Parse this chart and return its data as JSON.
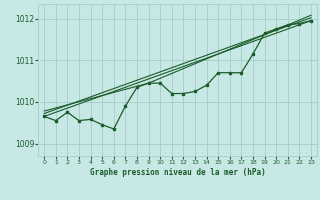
{
  "background_color": "#c8e8e5",
  "grid_color": "#a8d0cc",
  "line_color": "#1a5c2a",
  "xlabel": "Graphe pression niveau de la mer (hPa)",
  "xlim": [
    -0.5,
    23.5
  ],
  "ylim": [
    1008.7,
    1012.35
  ],
  "yticks": [
    1009,
    1010,
    1011,
    1012
  ],
  "xticks": [
    0,
    1,
    2,
    3,
    4,
    5,
    6,
    7,
    8,
    9,
    10,
    11,
    12,
    13,
    14,
    15,
    16,
    17,
    18,
    19,
    20,
    21,
    22,
    23
  ],
  "series_main": [
    [
      0,
      1009.65
    ],
    [
      1,
      1009.55
    ],
    [
      2,
      1009.75
    ],
    [
      3,
      1009.55
    ],
    [
      4,
      1009.58
    ],
    [
      5,
      1009.45
    ],
    [
      6,
      1009.35
    ],
    [
      7,
      1009.9
    ],
    [
      8,
      1010.35
    ],
    [
      9,
      1010.45
    ],
    [
      10,
      1010.45
    ],
    [
      11,
      1010.2
    ],
    [
      12,
      1010.2
    ],
    [
      13,
      1010.25
    ],
    [
      14,
      1010.4
    ],
    [
      15,
      1010.7
    ],
    [
      16,
      1010.7
    ],
    [
      17,
      1010.7
    ],
    [
      18,
      1011.15
    ],
    [
      19,
      1011.65
    ],
    [
      20,
      1011.75
    ],
    [
      21,
      1011.85
    ],
    [
      22,
      1011.88
    ],
    [
      23,
      1011.95
    ]
  ],
  "series_trend1": [
    [
      0,
      1009.65
    ],
    [
      23,
      1011.95
    ]
  ],
  "series_trend2": [
    [
      0,
      1009.72
    ],
    [
      23,
      1012.02
    ]
  ],
  "series_trend3": [
    [
      0,
      1009.78
    ],
    [
      9,
      1010.45
    ],
    [
      23,
      1012.08
    ]
  ]
}
